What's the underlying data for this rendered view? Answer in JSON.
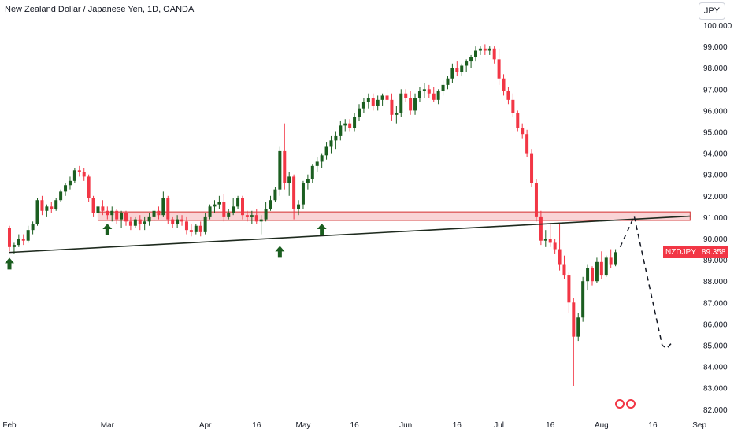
{
  "header": {
    "title": "New Zealand Dollar / Japanese Yen, 1D, OANDA",
    "currency_button": "JPY"
  },
  "price_tag": {
    "symbol": "NZDJPY",
    "price": "89.358"
  },
  "colors": {
    "up": "#1b5e20",
    "down": "#f23645",
    "zone_fill": "#f7c5c8",
    "zone_border": "#d32f2f",
    "arrow": "#1b5e20"
  },
  "logo": {
    "icon": "brand-logo-icon"
  },
  "chart_data": {
    "type": "candlestick",
    "title": "New Zealand Dollar / Japanese Yen, 1D, OANDA",
    "ylim": [
      82,
      100
    ],
    "y_ticks": [
      "100.000",
      "99.000",
      "98.000",
      "97.000",
      "96.000",
      "95.000",
      "94.000",
      "93.000",
      "92.000",
      "91.000",
      "90.000",
      "89.000",
      "88.000",
      "87.000",
      "86.000",
      "85.000",
      "84.000",
      "83.000",
      "82.000"
    ],
    "x_ticks": [
      {
        "label": "Feb",
        "day": 0
      },
      {
        "label": "Mar",
        "day": 21
      },
      {
        "label": "Apr",
        "day": 42
      },
      {
        "label": "16",
        "day": 53
      },
      {
        "label": "May",
        "day": 63
      },
      {
        "label": "16",
        "day": 74
      },
      {
        "label": "Jun",
        "day": 85
      },
      {
        "label": "16",
        "day": 96
      },
      {
        "label": "Jul",
        "day": 105
      },
      {
        "label": "16",
        "day": 116
      },
      {
        "label": "Aug",
        "day": 127
      },
      {
        "label": "16",
        "day": 138
      },
      {
        "label": "Sep",
        "day": 148
      }
    ],
    "candles": [
      [
        0,
        90.5,
        90.6,
        89.4,
        89.6
      ],
      [
        1,
        89.6,
        89.8,
        89.3,
        89.7
      ],
      [
        2,
        89.7,
        90.2,
        89.6,
        90.0
      ],
      [
        3,
        90.0,
        90.2,
        89.7,
        89.9
      ],
      [
        4,
        89.9,
        90.6,
        89.8,
        90.4
      ],
      [
        5,
        90.4,
        90.8,
        90.2,
        90.7
      ],
      [
        6,
        90.7,
        91.9,
        90.6,
        91.8
      ],
      [
        7,
        91.8,
        92.0,
        91.1,
        91.3
      ],
      [
        8,
        91.3,
        91.6,
        91.0,
        91.5
      ],
      [
        9,
        91.5,
        91.7,
        91.2,
        91.4
      ],
      [
        10,
        91.4,
        91.9,
        91.3,
        91.8
      ],
      [
        11,
        91.8,
        92.3,
        91.7,
        92.2
      ],
      [
        12,
        92.2,
        92.6,
        92.0,
        92.5
      ],
      [
        13,
        92.5,
        92.9,
        92.3,
        92.7
      ],
      [
        14,
        92.7,
        93.3,
        92.6,
        93.2
      ],
      [
        15,
        93.2,
        93.4,
        92.9,
        93.1
      ],
      [
        16,
        93.1,
        93.3,
        92.7,
        92.9
      ],
      [
        17,
        92.9,
        93.0,
        91.7,
        91.9
      ],
      [
        18,
        91.9,
        92.0,
        91.0,
        91.2
      ],
      [
        19,
        91.2,
        91.6,
        91.0,
        91.5
      ],
      [
        20,
        91.5,
        91.8,
        91.1,
        91.3
      ],
      [
        21,
        91.3,
        91.5,
        90.9,
        91.1
      ],
      [
        22,
        91.1,
        91.5,
        90.8,
        91.3
      ],
      [
        23,
        91.3,
        91.4,
        90.7,
        90.9
      ],
      [
        24,
        90.9,
        91.3,
        90.5,
        91.2
      ],
      [
        25,
        91.2,
        91.3,
        90.6,
        90.8
      ],
      [
        26,
        90.8,
        91.0,
        90.4,
        90.6
      ],
      [
        27,
        90.6,
        91.0,
        90.5,
        90.9
      ],
      [
        28,
        90.9,
        91.1,
        90.4,
        90.7
      ],
      [
        29,
        90.7,
        91.0,
        90.4,
        90.8
      ],
      [
        30,
        90.8,
        91.2,
        90.6,
        91.0
      ],
      [
        31,
        91.0,
        91.4,
        90.8,
        91.3
      ],
      [
        32,
        91.3,
        91.5,
        90.9,
        91.1
      ],
      [
        33,
        91.1,
        92.2,
        91.0,
        91.9
      ],
      [
        34,
        91.9,
        92.0,
        90.7,
        90.9
      ],
      [
        35,
        90.9,
        91.0,
        90.5,
        90.7
      ],
      [
        36,
        90.7,
        91.1,
        90.5,
        90.9
      ],
      [
        37,
        90.9,
        91.1,
        90.6,
        90.8
      ],
      [
        38,
        90.8,
        91.0,
        90.2,
        90.4
      ],
      [
        39,
        90.4,
        90.7,
        90.1,
        90.3
      ],
      [
        40,
        90.3,
        90.7,
        90.2,
        90.6
      ],
      [
        41,
        90.6,
        90.8,
        90.1,
        90.3
      ],
      [
        42,
        90.3,
        91.2,
        90.2,
        91.0
      ],
      [
        43,
        91.0,
        91.6,
        90.9,
        91.5
      ],
      [
        44,
        91.5,
        91.8,
        91.2,
        91.6
      ],
      [
        45,
        91.6,
        92.0,
        91.4,
        91.7
      ],
      [
        46,
        91.7,
        92.1,
        90.8,
        91.0
      ],
      [
        47,
        91.0,
        91.4,
        90.9,
        91.2
      ],
      [
        48,
        91.2,
        91.9,
        91.1,
        91.5
      ],
      [
        49,
        91.5,
        92.0,
        91.4,
        91.9
      ],
      [
        50,
        91.9,
        92.0,
        90.9,
        91.1
      ],
      [
        51,
        91.1,
        91.3,
        90.8,
        91.0
      ],
      [
        52,
        91.0,
        91.3,
        90.7,
        91.1
      ],
      [
        53,
        91.1,
        91.4,
        90.7,
        90.8
      ],
      [
        54,
        90.8,
        91.1,
        90.2,
        90.9
      ],
      [
        55,
        90.9,
        91.7,
        90.8,
        91.4
      ],
      [
        56,
        91.4,
        92.0,
        91.3,
        91.8
      ],
      [
        57,
        91.8,
        92.4,
        91.7,
        92.3
      ],
      [
        58,
        92.3,
        94.3,
        92.0,
        94.1
      ],
      [
        59,
        94.1,
        95.4,
        92.3,
        92.6
      ],
      [
        60,
        92.6,
        93.1,
        92.0,
        92.9
      ],
      [
        61,
        92.9,
        93.0,
        90.9,
        91.4
      ],
      [
        62,
        91.4,
        91.8,
        91.1,
        91.6
      ],
      [
        63,
        91.6,
        92.7,
        91.4,
        92.6
      ],
      [
        64,
        92.6,
        93.0,
        92.3,
        92.8
      ],
      [
        65,
        92.8,
        93.5,
        92.6,
        93.4
      ],
      [
        66,
        93.4,
        93.8,
        93.1,
        93.6
      ],
      [
        67,
        93.6,
        94.0,
        93.3,
        93.9
      ],
      [
        68,
        93.9,
        94.5,
        93.7,
        94.3
      ],
      [
        69,
        94.3,
        94.8,
        94.0,
        94.6
      ],
      [
        70,
        94.6,
        95.0,
        94.2,
        94.8
      ],
      [
        71,
        94.8,
        95.5,
        94.6,
        95.3
      ],
      [
        72,
        95.3,
        95.6,
        95.0,
        95.4
      ],
      [
        73,
        95.4,
        95.6,
        95.0,
        95.2
      ],
      [
        74,
        95.2,
        95.9,
        95.0,
        95.7
      ],
      [
        75,
        95.7,
        96.3,
        95.5,
        96.1
      ],
      [
        76,
        96.1,
        96.6,
        95.9,
        96.4
      ],
      [
        77,
        96.4,
        96.8,
        96.1,
        96.6
      ],
      [
        78,
        96.6,
        96.8,
        96.0,
        96.2
      ],
      [
        79,
        96.2,
        96.7,
        96.0,
        96.5
      ],
      [
        80,
        96.5,
        96.8,
        96.2,
        96.7
      ],
      [
        81,
        96.7,
        97.0,
        96.3,
        96.5
      ],
      [
        82,
        96.5,
        96.8,
        95.5,
        95.8
      ],
      [
        83,
        95.8,
        96.2,
        95.4,
        95.9
      ],
      [
        84,
        95.9,
        97.0,
        95.7,
        96.8
      ],
      [
        85,
        96.8,
        97.0,
        96.4,
        96.6
      ],
      [
        86,
        96.6,
        96.9,
        95.8,
        96.0
      ],
      [
        87,
        96.0,
        96.8,
        95.8,
        96.6
      ],
      [
        88,
        96.6,
        97.1,
        96.4,
        96.9
      ],
      [
        89,
        96.9,
        97.3,
        96.6,
        97.0
      ],
      [
        90,
        97.0,
        97.2,
        96.6,
        96.8
      ],
      [
        91,
        96.8,
        97.1,
        96.4,
        96.5
      ],
      [
        92,
        96.5,
        97.0,
        96.3,
        96.9
      ],
      [
        93,
        96.9,
        97.4,
        96.7,
        97.2
      ],
      [
        94,
        97.2,
        97.6,
        97.0,
        97.5
      ],
      [
        95,
        97.5,
        98.2,
        97.3,
        98.0
      ],
      [
        96,
        98.0,
        98.3,
        97.6,
        97.8
      ],
      [
        97,
        97.8,
        98.2,
        97.6,
        98.1
      ],
      [
        98,
        98.1,
        98.4,
        97.8,
        98.3
      ],
      [
        99,
        98.3,
        98.6,
        98.0,
        98.5
      ],
      [
        100,
        98.5,
        99.0,
        98.3,
        98.8
      ],
      [
        101,
        98.8,
        99.0,
        98.6,
        98.9
      ],
      [
        102,
        98.9,
        99.1,
        98.6,
        98.8
      ],
      [
        103,
        98.8,
        99.0,
        98.6,
        98.9
      ],
      [
        104,
        98.9,
        99.0,
        98.2,
        98.4
      ],
      [
        105,
        98.4,
        98.9,
        97.2,
        97.5
      ],
      [
        106,
        97.5,
        97.7,
        96.7,
        96.9
      ],
      [
        107,
        96.9,
        97.1,
        96.3,
        96.5
      ],
      [
        108,
        96.5,
        96.8,
        95.7,
        95.9
      ],
      [
        109,
        95.9,
        96.0,
        95.0,
        95.2
      ],
      [
        110,
        95.2,
        95.4,
        94.7,
        94.9
      ],
      [
        111,
        94.9,
        95.1,
        93.8,
        94.0
      ],
      [
        112,
        94.0,
        94.2,
        92.4,
        92.6
      ],
      [
        113,
        92.6,
        92.8,
        90.8,
        91.0
      ],
      [
        114,
        91.0,
        91.3,
        89.7,
        89.9
      ],
      [
        115,
        89.9,
        90.4,
        89.6,
        90.0
      ],
      [
        116,
        90.0,
        90.7,
        89.6,
        89.8
      ],
      [
        117,
        89.8,
        90.0,
        89.3,
        89.5
      ],
      [
        118,
        89.5,
        90.7,
        88.5,
        88.8
      ],
      [
        119,
        88.8,
        89.2,
        88.1,
        88.3
      ],
      [
        120,
        88.3,
        88.4,
        86.5,
        87.0
      ],
      [
        121,
        87.0,
        87.2,
        83.1,
        85.4
      ],
      [
        122,
        85.4,
        86.5,
        85.2,
        86.3
      ],
      [
        123,
        86.3,
        88.2,
        86.1,
        88.0
      ],
      [
        124,
        88.0,
        88.8,
        87.6,
        88.6
      ],
      [
        125,
        88.6,
        88.7,
        87.8,
        88.0
      ],
      [
        126,
        88.0,
        89.1,
        87.9,
        88.9
      ],
      [
        127,
        88.9,
        89.4,
        88.1,
        88.3
      ],
      [
        128,
        88.3,
        89.2,
        88.2,
        89.1
      ],
      [
        129,
        89.1,
        89.5,
        88.6,
        88.8
      ],
      [
        130,
        88.8,
        89.5,
        88.7,
        89.36
      ]
    ],
    "support_zone": {
      "day_start": 19,
      "day_end": 146,
      "low": 90.85,
      "high": 91.25
    },
    "trendline": {
      "start": [
        0,
        89.35
      ],
      "end": [
        146,
        91.05
      ]
    },
    "projection": [
      [
        131,
        89.6
      ],
      [
        134,
        91.05
      ],
      [
        140,
        85.0
      ],
      [
        141,
        84.85
      ],
      [
        142,
        85.1
      ]
    ],
    "arrows": [
      {
        "day": 0,
        "price": 89.25
      },
      {
        "day": 21,
        "price": 90.85
      },
      {
        "day": 58,
        "price": 89.8
      },
      {
        "day": 67,
        "price": 90.85
      }
    ],
    "last_price": 89.358,
    "grid": false,
    "legend": "none"
  }
}
